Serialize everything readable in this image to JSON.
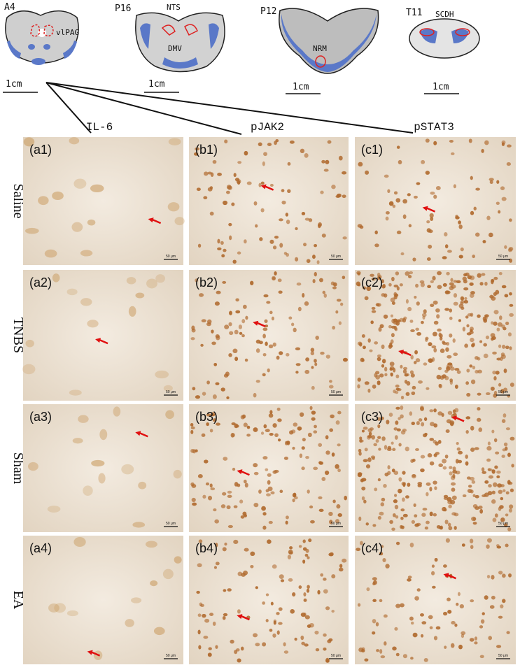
{
  "header": {
    "sections": [
      {
        "label": "A4",
        "regions": [
          "vlPAG"
        ],
        "scale": "1cm"
      },
      {
        "label": "P16",
        "regions": [
          "NTS",
          "DMV"
        ],
        "scale": "1cm"
      },
      {
        "label": "P12",
        "regions": [
          "NRM"
        ],
        "scale": "1cm"
      },
      {
        "label": "T11",
        "regions": [
          "SCDH"
        ],
        "scale": "1cm"
      }
    ]
  },
  "columns": [
    "IL-6",
    "pJAK2",
    "pSTAT3"
  ],
  "rows": [
    "Saline",
    "TNBS",
    "Sham",
    "EA"
  ],
  "panels": [
    [
      "(a1)",
      "(b1)",
      "(c1)"
    ],
    [
      "(a2)",
      "(b2)",
      "(c2)"
    ],
    [
      "(a3)",
      "(b3)",
      "(c3)"
    ],
    [
      "(a4)",
      "(b4)",
      "(c4)"
    ]
  ],
  "panel_scale": "50 μm"
}
